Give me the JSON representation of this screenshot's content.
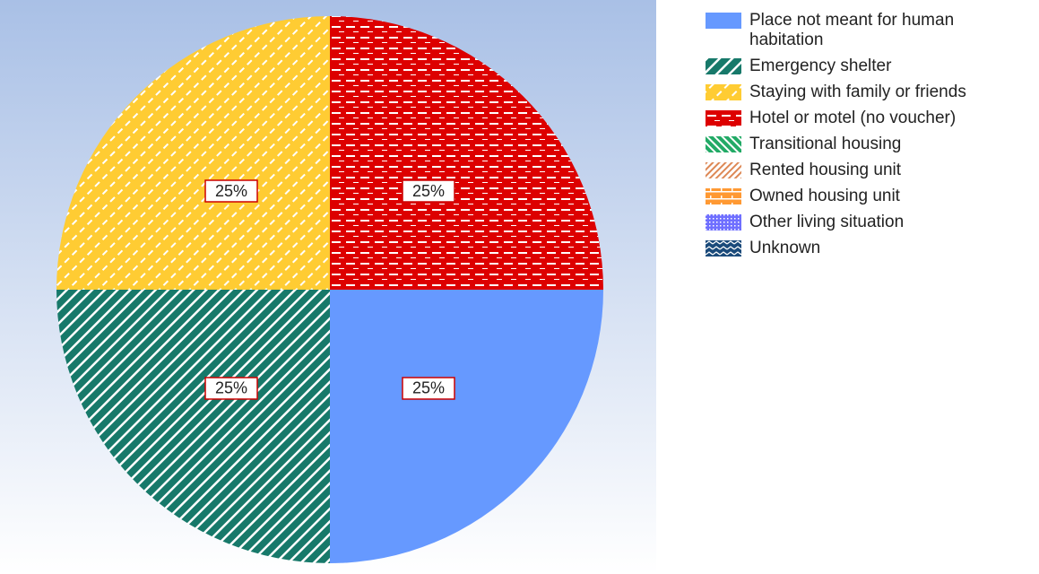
{
  "chart_data": {
    "type": "pie",
    "categories": [
      "Place not meant for human habitation",
      "Emergency shelter",
      "Staying with family or friends",
      "Hotel or motel (no voucher)",
      "Transitional housing",
      "Rented housing unit",
      "Owned housing unit",
      "Other living situation",
      "Unknown"
    ],
    "values": [
      25,
      25,
      25,
      25,
      0,
      0,
      0,
      0,
      0
    ],
    "value_labels": [
      "25%",
      "25%",
      "25%",
      "25%",
      null,
      null,
      null,
      null,
      null
    ],
    "colors": [
      "#6699ff",
      "#17796a",
      "#ffcc33",
      "#dd0000",
      "#22aa66",
      "#dd8855",
      "#ff9933",
      "#6f6fff",
      "#1a4a7a"
    ],
    "patterns": [
      "solid",
      "diagonal",
      "dashed-diagonal",
      "dashed-horizontal",
      "back-diagonal",
      "fine-diagonal",
      "brick",
      "dots",
      "zigzag"
    ],
    "legend": "right"
  }
}
